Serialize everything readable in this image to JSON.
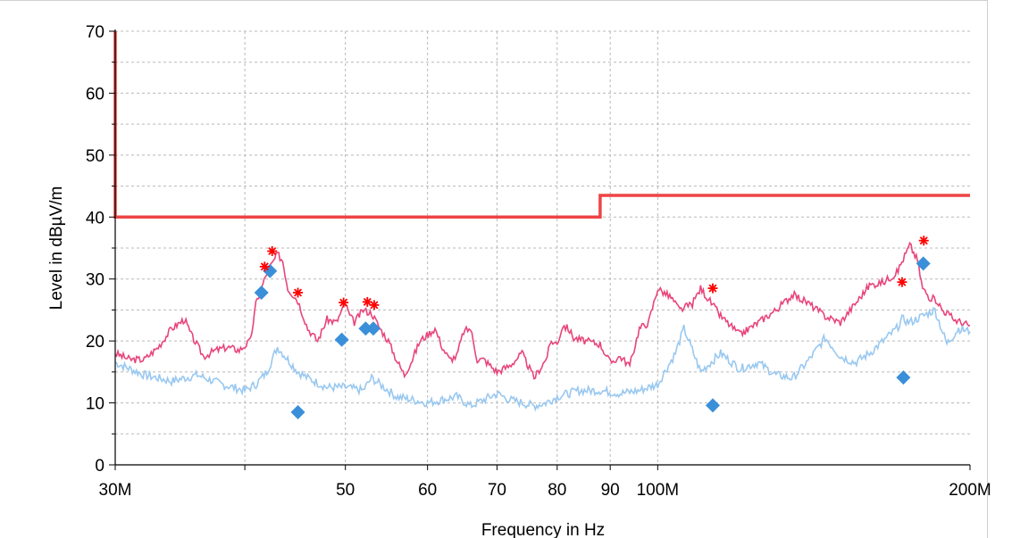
{
  "chart_data": {
    "type": "line",
    "xlabel": "Frequency in Hz",
    "ylabel": "Level in dBµV/m",
    "xscale": "log",
    "xlim": [
      30,
      200
    ],
    "ylim": [
      0,
      70
    ],
    "grid": true,
    "x_ticks": [
      {
        "value": 30,
        "label": "30M"
      },
      {
        "value": 50,
        "label": "50"
      },
      {
        "value": 60,
        "label": "60"
      },
      {
        "value": 70,
        "label": "70"
      },
      {
        "value": 80,
        "label": "80"
      },
      {
        "value": 90,
        "label": "90"
      },
      {
        "value": 100,
        "label": "100M"
      },
      {
        "value": 200,
        "label": "200M"
      }
    ],
    "y_ticks": [
      0,
      10,
      20,
      30,
      40,
      50,
      60,
      70
    ],
    "colors": {
      "limit": "#ee4444",
      "peak": "#e8457a",
      "average": "#99c8f0",
      "peak_markers": "#ff0000",
      "qp_markers": "#3a8fd9"
    },
    "series": [
      {
        "role": "limit",
        "x": [
          30,
          30,
          88,
          88,
          200
        ],
        "y": [
          70,
          40,
          40,
          43.5,
          43.5
        ]
      },
      {
        "role": "peak",
        "x": [
          30,
          31,
          32,
          33,
          34,
          35,
          35.5,
          36.5,
          37.5,
          38.5,
          39.5,
          40.5,
          41,
          42,
          42.5,
          43,
          43.5,
          44,
          44.5,
          45,
          46,
          47,
          48,
          49,
          50,
          50.5,
          51,
          52,
          53,
          54,
          55,
          56,
          57,
          58,
          59,
          61,
          62,
          63,
          64,
          65,
          66,
          67,
          68,
          70,
          72,
          74,
          75,
          76,
          78,
          79,
          80,
          81,
          82,
          83,
          85,
          88,
          90,
          92,
          94,
          96,
          98,
          100,
          103,
          105,
          108,
          110,
          115,
          120,
          125,
          130,
          135,
          140,
          145,
          150,
          155,
          160,
          165,
          170,
          175,
          178,
          180,
          183,
          186,
          188,
          190,
          193,
          196,
          200
        ],
        "y": [
          18,
          17,
          17,
          19,
          22,
          23.5,
          21,
          17.5,
          18.5,
          19,
          18.5,
          20,
          26,
          31,
          32.5,
          34,
          33,
          28.5,
          27.5,
          26.5,
          22,
          20,
          23.5,
          23,
          26,
          24,
          23,
          25,
          24.5,
          22,
          20,
          17,
          14.5,
          17,
          20,
          22,
          19,
          17,
          17.5,
          21.5,
          22,
          17,
          17,
          15,
          16,
          18,
          16,
          14,
          17,
          20,
          19.5,
          22.5,
          22,
          20.5,
          20,
          19.5,
          16.5,
          17.5,
          16,
          22,
          23,
          28.5,
          27,
          25,
          26,
          28.5,
          24,
          21,
          23,
          25,
          27.5,
          26,
          24,
          23,
          26,
          29,
          29.5,
          31,
          35.5,
          33,
          28.5,
          27,
          26.5,
          25,
          24.5,
          23.5,
          23,
          22.5
        ]
      },
      {
        "role": "average",
        "x": [
          30,
          32,
          34,
          36,
          38,
          40,
          41,
          42,
          43,
          44,
          45,
          46,
          48,
          50,
          52,
          53,
          54,
          56,
          58,
          60,
          62,
          64,
          66,
          68,
          70,
          72,
          74,
          76,
          78,
          80,
          84,
          88,
          92,
          96,
          100,
          104,
          106,
          110,
          115,
          120,
          125,
          130,
          135,
          140,
          145,
          150,
          155,
          160,
          165,
          170,
          172,
          175,
          180,
          185,
          190,
          195,
          200
        ],
        "y": [
          16.5,
          14.5,
          13.5,
          14.5,
          13,
          12,
          13,
          15,
          19,
          17,
          15,
          14,
          12.5,
          12.5,
          12,
          14,
          13,
          11,
          10.5,
          10,
          10.5,
          11,
          9.5,
          10.5,
          11.5,
          10.5,
          10,
          9.5,
          10,
          11,
          12,
          12,
          11.5,
          12,
          13,
          18,
          22,
          15,
          18,
          15.5,
          16.5,
          14.5,
          14,
          17,
          20.5,
          17.5,
          16.5,
          18,
          20,
          22,
          23.5,
          23,
          24,
          25,
          19.5,
          22,
          21.5
        ]
      }
    ],
    "peak_markers": [
      {
        "x": 41.8,
        "y": 32
      },
      {
        "x": 42.5,
        "y": 34.5
      },
      {
        "x": 45.0,
        "y": 27.8
      },
      {
        "x": 49.8,
        "y": 26.2
      },
      {
        "x": 52.5,
        "y": 26.3
      },
      {
        "x": 53.3,
        "y": 25.8
      },
      {
        "x": 113.0,
        "y": 28.5
      },
      {
        "x": 172.0,
        "y": 29.5
      },
      {
        "x": 180.5,
        "y": 36.2
      }
    ],
    "qp_markers": [
      {
        "x": 41.5,
        "y": 27.8
      },
      {
        "x": 42.3,
        "y": 31.3
      },
      {
        "x": 45.0,
        "y": 8.5
      },
      {
        "x": 49.6,
        "y": 20.2
      },
      {
        "x": 52.3,
        "y": 22.0
      },
      {
        "x": 53.2,
        "y": 22.0
      },
      {
        "x": 113.0,
        "y": 9.6
      },
      {
        "x": 172.5,
        "y": 14.1
      },
      {
        "x": 180.3,
        "y": 32.5
      }
    ]
  }
}
